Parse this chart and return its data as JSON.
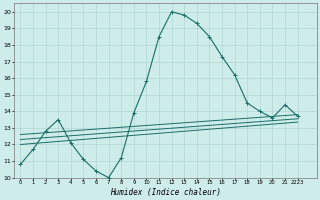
{
  "background_color": "#ceecea",
  "grid_color": "#aacfcc",
  "line_color": "#1a6e65",
  "xlabel": "Humidex (Indice chaleur)",
  "xlim": [
    -0.5,
    23.5
  ],
  "ylim": [
    10,
    20.5
  ],
  "yticks": [
    10,
    11,
    12,
    13,
    14,
    15,
    16,
    17,
    18,
    19,
    20
  ],
  "xtick_labels": [
    "0",
    "1",
    "2",
    "3",
    "4",
    "5",
    "6",
    "7",
    "8",
    "9",
    "10",
    "11",
    "12",
    "13",
    "14",
    "15",
    "16",
    "17",
    "18",
    "19",
    "20",
    "21",
    "2223"
  ],
  "main_x": [
    0,
    1,
    2,
    3,
    4,
    5,
    6,
    7,
    8,
    9,
    10,
    11,
    12,
    13,
    14,
    15,
    16,
    17,
    18,
    19,
    20,
    21,
    22
  ],
  "main_y": [
    10.8,
    11.7,
    12.8,
    13.5,
    12.1,
    11.1,
    10.4,
    10.0,
    11.2,
    13.9,
    15.8,
    18.5,
    20.0,
    19.8,
    19.3,
    18.5,
    17.3,
    16.2,
    14.5,
    14.0,
    13.6,
    14.4,
    13.7
  ],
  "trend1_x": [
    0,
    22
  ],
  "trend1_y": [
    12.6,
    13.8
  ],
  "trend2_x": [
    0,
    22
  ],
  "trend2_y": [
    12.3,
    13.55
  ],
  "trend3_x": [
    0,
    22
  ],
  "trend3_y": [
    12.0,
    13.35
  ]
}
